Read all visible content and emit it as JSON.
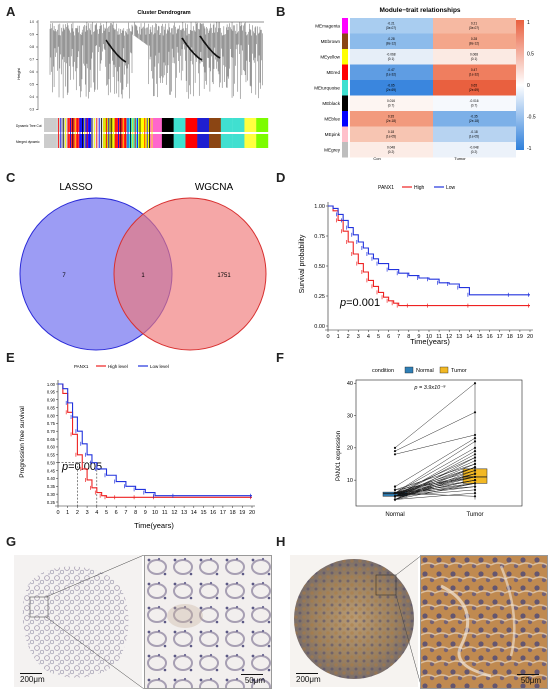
{
  "panels": {
    "A": "A",
    "B": "B",
    "C": "C",
    "D": "D",
    "E": "E",
    "F": "F",
    "G": "G",
    "H": "H"
  },
  "panel_a": {
    "title": "Cluster Dendrogram",
    "ylabel": "Height",
    "yticks": [
      "1.0",
      "0.9",
      "0.8",
      "0.7",
      "0.6",
      "0.5",
      "0.4",
      "0.3"
    ],
    "row_labels": [
      "Dynamic Tree Cut",
      "Merged dynamic"
    ],
    "module_colors": [
      "#cccccc",
      "#d0d0d0",
      "#ff3030",
      "#1a1aff",
      "#e6e6e6",
      "#cfcf10",
      "#ff2020",
      "#40e0d0",
      "#ffff00",
      "#ff66cc",
      "#000000",
      "#40e0d0",
      "#ff0000",
      "#1f1fd0",
      "#8b4513",
      "#40e0d0",
      "#40e0d0",
      "#ffff40",
      "#7cfc00"
    ]
  },
  "panel_b": {
    "title": "Module−trait relationships",
    "modules": [
      {
        "name": "MEmagenta",
        "color": "#ff00ff",
        "con_r": "-0.21",
        "con_p": "(3e-07)",
        "tum_r": "0.21",
        "tum_p": "(3e-07)",
        "con_fill": "#a9cdf0",
        "tum_fill": "#f6b9a2"
      },
      {
        "name": "MEbrown",
        "color": "#8b4513",
        "con_r": "-0.28",
        "con_p": "(8e-12)",
        "tum_r": "0.28",
        "tum_p": "(8e-12)",
        "con_fill": "#8cbbeb",
        "tum_fill": "#f4a68a"
      },
      {
        "name": "MEyellow",
        "color": "#ffff00",
        "con_r": "-0.068",
        "con_p": "(0.1)",
        "tum_r": "0.068",
        "tum_p": "(0.1)",
        "con_fill": "#e6eef8",
        "tum_fill": "#fbeae3"
      },
      {
        "name": "MEred",
        "color": "#ff0000",
        "con_r": "-0.47",
        "con_p": "(1e-32)",
        "tum_r": "0.47",
        "tum_p": "(1e-32)",
        "con_fill": "#5f9de3",
        "tum_fill": "#ef7e5f"
      },
      {
        "name": "MEturquoise",
        "color": "#40e0d0",
        "con_r": "-0.65",
        "con_p": "(2e-69)",
        "tum_r": "0.65",
        "tum_p": "(2e-69)",
        "con_fill": "#3a86de",
        "tum_fill": "#e9603f"
      },
      {
        "name": "MEblack",
        "color": "#000000",
        "con_r": "0.016",
        "con_p": "(0.7)",
        "tum_r": "-0.016",
        "tum_p": "(0.7)",
        "con_fill": "#fdf5f2",
        "tum_fill": "#f6f9fd"
      },
      {
        "name": "MEblue",
        "color": "#0000ff",
        "con_r": "0.35",
        "con_p": "(2e-18)",
        "tum_r": "-0.35",
        "tum_p": "(2e-18)",
        "con_fill": "#f29a7d",
        "tum_fill": "#7cb0e8"
      },
      {
        "name": "MEpink",
        "color": "#ffc0cb",
        "con_r": "0.18",
        "con_p": "(1e-05)",
        "tum_r": "-0.18",
        "tum_p": "(1e-05)",
        "con_fill": "#f7c5b2",
        "tum_fill": "#b7d3f1"
      },
      {
        "name": "MEgrey",
        "color": "#bebebe",
        "con_r": "0.048",
        "con_p": "(0.2)",
        "tum_r": "-0.048",
        "tum_p": "(0.2)",
        "con_fill": "#fcece6",
        "tum_fill": "#ecf2fa"
      }
    ],
    "xlabels": [
      "Con",
      "Tumor"
    ],
    "scale_ticks": [
      "1",
      "0.5",
      "0",
      "-0.5",
      "-1"
    ]
  },
  "panel_c": {
    "labels": [
      "LASSO",
      "WGCNA"
    ],
    "counts": {
      "left_only": "7",
      "overlap": "1",
      "right_only": "1751"
    }
  },
  "panel_d": {
    "legend_title": "PANX1",
    "legend": [
      "High",
      "Low"
    ],
    "ylabel": "Survival probability",
    "xlabel": "Time(years)",
    "yticks": [
      "1.00",
      "0.75",
      "0.50",
      "0.25",
      "0.00"
    ],
    "xticks": [
      "0",
      "1",
      "2",
      "3",
      "4",
      "5",
      "6",
      "7",
      "8",
      "9",
      "10",
      "11",
      "12",
      "13",
      "14",
      "15",
      "16",
      "17",
      "18",
      "19",
      "20"
    ],
    "pvalue": "p=0.001"
  },
  "panel_e": {
    "legend_title": "PANX1",
    "legend": [
      "High level",
      "Low level"
    ],
    "ylabel": "Progression free survival",
    "xlabel": "Time(years)",
    "yticks": [
      "1.00",
      "0.95",
      "0.90",
      "0.85",
      "0.80",
      "0.75",
      "0.70",
      "0.65",
      "0.60",
      "0.55",
      "0.50",
      "0.45",
      "0.40",
      "0.35",
      "0.30",
      "0.25"
    ],
    "xticks": [
      "0",
      "1",
      "2",
      "3",
      "4",
      "5",
      "6",
      "7",
      "8",
      "9",
      "10",
      "11",
      "12",
      "13",
      "14",
      "15",
      "16",
      "17",
      "18",
      "19",
      "20"
    ],
    "pvalue": "p=0.005"
  },
  "panel_f": {
    "legend_title": "condition",
    "legend": [
      "Normal",
      "Tumor"
    ],
    "ylabel": "PANX1 expression",
    "xlabels": [
      "Normal",
      "Tumor"
    ],
    "yticks": [
      "40",
      "30",
      "20",
      "10"
    ],
    "pvalue": "p = 3.9x10⁻⁹"
  },
  "panel_g": {
    "scale_left": "200μm",
    "scale_right": "50μm"
  },
  "panel_h": {
    "scale_left": "200μm",
    "scale_right": "50μm"
  },
  "chart_data": [
    {
      "type": "line",
      "panel": "D",
      "xlabel": "Time(years)",
      "ylabel": "Survival probability",
      "xlim": [
        0,
        20
      ],
      "ylim": [
        0,
        1
      ],
      "pvalue": "p=0.001",
      "series": [
        {
          "name": "High",
          "color": "#ee2222",
          "x": [
            0,
            0.5,
            1,
            1.5,
            2,
            2.5,
            3,
            3.5,
            4,
            4.5,
            5,
            5.5,
            6,
            6.5,
            7,
            8,
            10,
            14,
            20
          ],
          "y": [
            1.0,
            0.96,
            0.88,
            0.79,
            0.7,
            0.6,
            0.52,
            0.45,
            0.38,
            0.33,
            0.28,
            0.24,
            0.21,
            0.19,
            0.17,
            0.17,
            0.17,
            0.17,
            0.17
          ]
        },
        {
          "name": "Low",
          "color": "#2233dd",
          "x": [
            0,
            0.5,
            1,
            1.5,
            2,
            2.5,
            3,
            3.5,
            4,
            4.5,
            5,
            6,
            7,
            8,
            9,
            10,
            11,
            12,
            13,
            14,
            18,
            20
          ],
          "y": [
            1.0,
            0.98,
            0.93,
            0.88,
            0.82,
            0.76,
            0.7,
            0.65,
            0.6,
            0.56,
            0.52,
            0.47,
            0.44,
            0.42,
            0.4,
            0.39,
            0.36,
            0.35,
            0.32,
            0.26,
            0.26,
            0.26
          ]
        }
      ]
    },
    {
      "type": "line",
      "panel": "E",
      "xlabel": "Time(years)",
      "ylabel": "Progression free survival",
      "xlim": [
        0,
        20
      ],
      "ylim": [
        0.25,
        1
      ],
      "pvalue": "p=0.005",
      "series": [
        {
          "name": "High level",
          "color": "#ee2222",
          "x": [
            0,
            0.5,
            1,
            1.5,
            2,
            2.5,
            3,
            3.5,
            4,
            4.5,
            5,
            6,
            8,
            10,
            20
          ],
          "y": [
            1.0,
            0.94,
            0.82,
            0.68,
            0.55,
            0.46,
            0.39,
            0.34,
            0.31,
            0.29,
            0.28,
            0.28,
            0.28,
            0.28,
            0.28
          ]
        },
        {
          "name": "Low level",
          "color": "#2233dd",
          "x": [
            0,
            0.5,
            1,
            1.5,
            2,
            2.5,
            3,
            3.5,
            4,
            5,
            6,
            7,
            8,
            9,
            10,
            12,
            20
          ],
          "y": [
            1.0,
            0.97,
            0.88,
            0.79,
            0.7,
            0.62,
            0.55,
            0.5,
            0.46,
            0.42,
            0.38,
            0.35,
            0.33,
            0.31,
            0.29,
            0.29,
            0.29
          ]
        }
      ]
    },
    {
      "type": "box",
      "panel": "F",
      "ylabel": "PANX1 expression",
      "categories": [
        "Normal",
        "Tumor"
      ],
      "ylim": [
        2,
        41
      ],
      "series": [
        {
          "name": "Normal",
          "color": "#2f7fb6",
          "q1": 5.0,
          "median": 5.8,
          "q3": 6.3,
          "min": 3.5,
          "max": 8.5
        },
        {
          "name": "Tumor",
          "color": "#f2b824",
          "q1": 9.0,
          "median": 11.0,
          "q3": 13.5,
          "min": 4.0,
          "max": 40.0
        }
      ],
      "pairs": [
        [
          20,
          40
        ],
        [
          19,
          31
        ],
        [
          18,
          24
        ],
        [
          8,
          23
        ],
        [
          6,
          22
        ],
        [
          6,
          20
        ],
        [
          5,
          19
        ],
        [
          5,
          18
        ],
        [
          6,
          17
        ],
        [
          4,
          17
        ],
        [
          5,
          16
        ],
        [
          7,
          15
        ],
        [
          5,
          15
        ],
        [
          6,
          14
        ],
        [
          5,
          14
        ],
        [
          6,
          13
        ],
        [
          4,
          13
        ],
        [
          5,
          12
        ],
        [
          6,
          12
        ],
        [
          5,
          11
        ],
        [
          7,
          11
        ],
        [
          5,
          10
        ],
        [
          6,
          10
        ],
        [
          4,
          9
        ],
        [
          5,
          9
        ],
        [
          6,
          8
        ],
        [
          5,
          7
        ],
        [
          4,
          6
        ],
        [
          6,
          5
        ],
        [
          5,
          10
        ],
        [
          4,
          12
        ],
        [
          6,
          11
        ],
        [
          5,
          8
        ],
        [
          4,
          14
        ],
        [
          6,
          9
        ]
      ]
    }
  ]
}
